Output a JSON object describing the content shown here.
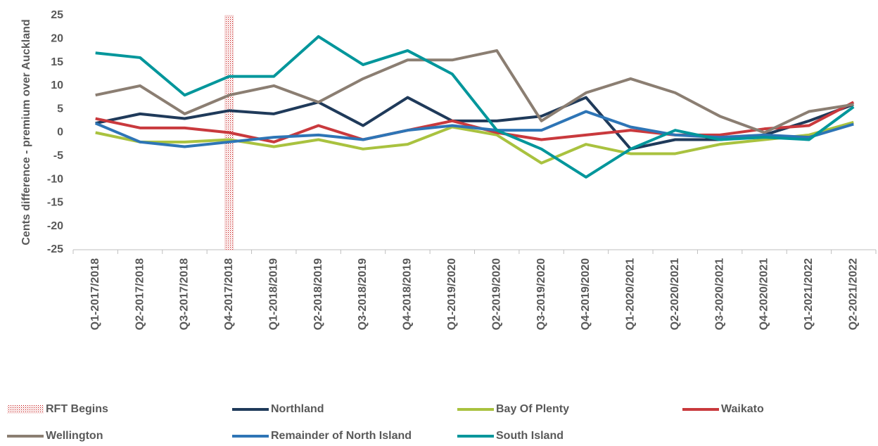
{
  "chart_data": {
    "type": "line",
    "y_label": "Cents difference - premium over Auckland",
    "categories": [
      "Q1-2017/2018",
      "Q2-2017/2018",
      "Q3-2017/2018",
      "Q4-2017/2018",
      "Q1-2018/2019",
      "Q2-2018/2019",
      "Q3-2018/2019",
      "Q4-2018/2019",
      "Q1-2019/2020",
      "Q2-2019/2020",
      "Q3-2019/2020",
      "Q4-2019/2020",
      "Q1-2020/2021",
      "Q2-2020/2021",
      "Q3-2020/2021",
      "Q4-2020/2021",
      "Q1-2021/2022",
      "Q2-2021/2022"
    ],
    "ylim": [
      -25,
      25
    ],
    "yticks": [
      -25,
      -20,
      -15,
      -10,
      -5,
      0,
      5,
      10,
      15,
      20,
      25
    ],
    "grid": false,
    "series": [
      {
        "name": "RFT Begins",
        "type": "bar",
        "color": "#c00000",
        "values": [
          null,
          null,
          null,
          25,
          null,
          null,
          null,
          null,
          null,
          null,
          null,
          null,
          null,
          null,
          null,
          null,
          null,
          null
        ]
      },
      {
        "name": "Northland",
        "color": "#1f3a5a",
        "values": [
          2,
          4,
          3,
          4.7,
          4,
          6.5,
          1.5,
          7.5,
          2.5,
          2.5,
          3.5,
          7.5,
          -3.5,
          -1.5,
          -1.5,
          -0.5,
          2.5,
          6
        ]
      },
      {
        "name": "Bay Of Plenty",
        "color": "#a9c23f",
        "values": [
          0,
          -2,
          -2,
          -1.5,
          -3,
          -1.5,
          -3.5,
          -2.5,
          1.2,
          -0.5,
          -6.5,
          -2.5,
          -4.5,
          -4.5,
          -2.5,
          -1.5,
          -0.5,
          2.2
        ]
      },
      {
        "name": "Waikato",
        "color": "#c9393d",
        "values": [
          3,
          1,
          1,
          0,
          -2,
          1.5,
          -1.5,
          0.5,
          2.5,
          0,
          -1.5,
          -0.5,
          0.5,
          -0.5,
          -0.5,
          0.8,
          1.5,
          6.5
        ]
      },
      {
        "name": "Wellington",
        "color": "#8b7e72",
        "values": [
          8,
          10,
          4,
          8,
          10,
          6.5,
          11.5,
          15.5,
          15.5,
          17.5,
          2.5,
          8.5,
          11.5,
          8.5,
          3.5,
          0,
          4.5,
          6
        ]
      },
      {
        "name": "Remainder of North Island",
        "color": "#2e75b6",
        "values": [
          2,
          -2,
          -3,
          -2,
          -1,
          -0.5,
          -1.5,
          0.5,
          1.5,
          0.5,
          0.5,
          4.5,
          1.2,
          -0.5,
          -1,
          -0.5,
          -1,
          1.8
        ]
      },
      {
        "name": "South Island",
        "color": "#00969b",
        "values": [
          17,
          16,
          8,
          12,
          12,
          20.5,
          14.5,
          17.5,
          12.5,
          0.5,
          -3.5,
          -9.5,
          -3.5,
          0.5,
          -1.5,
          -1,
          -1.5,
          5.5
        ]
      }
    ]
  }
}
